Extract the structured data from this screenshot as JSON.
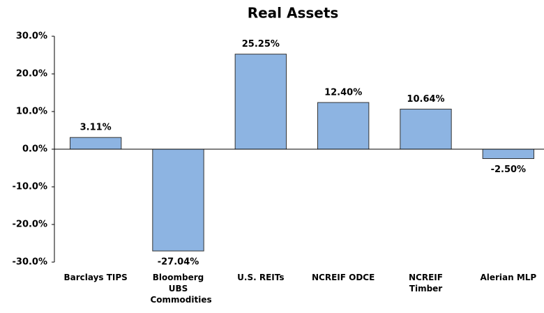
{
  "chart_data": {
    "type": "bar",
    "title": "Real Assets",
    "categories": [
      "Barclays TIPS",
      "Bloomberg UBS Commodities",
      "U.S. REITs",
      "NCREIF ODCE",
      "NCREIF Timber",
      "Alerian MLP"
    ],
    "values": [
      3.11,
      -27.04,
      25.25,
      12.4,
      10.64,
      -2.5
    ],
    "value_labels": [
      "3.11%",
      "-27.04%",
      "25.25%",
      "12.40%",
      "10.64%",
      "-2.50%"
    ],
    "color": "#8db4e2",
    "ylim": [
      -30,
      30
    ],
    "yticks": [
      {
        "value": -30,
        "label": "-30.0%"
      },
      {
        "value": -20,
        "label": "-20.0%"
      },
      {
        "value": -10,
        "label": "-10.0%"
      },
      {
        "value": 0,
        "label": "0.0%"
      },
      {
        "value": 10,
        "label": "10.0%"
      },
      {
        "value": 20,
        "label": "20.0%"
      },
      {
        "value": 30,
        "label": "30.0%"
      }
    ],
    "grid": false
  }
}
